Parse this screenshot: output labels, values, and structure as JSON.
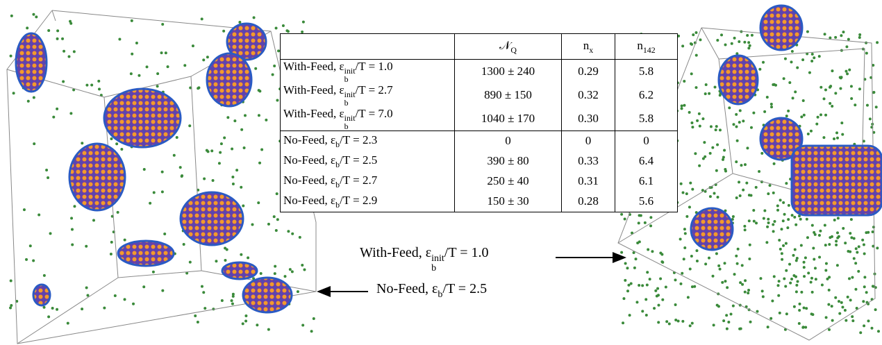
{
  "table": {
    "header": [
      {
        "main": "𝒩",
        "sub": "Q"
      },
      {
        "main": "n",
        "sub": "x"
      },
      {
        "main": "n",
        "sub": "142"
      }
    ],
    "rows": [
      {
        "label": {
          "main": "With-Feed, ε",
          "sub": "b",
          "sup": "init",
          "rest": "/T = 1.0"
        },
        "cells": [
          "1300 ± 240",
          "0.29",
          "5.8"
        ]
      },
      {
        "label": {
          "main": "With-Feed, ε",
          "sub": "b",
          "sup": "init",
          "rest": "/T = 2.7"
        },
        "cells": [
          "890 ± 150",
          "0.32",
          "6.2"
        ]
      },
      {
        "label": {
          "main": "With-Feed, ε",
          "sub": "b",
          "sup": "init",
          "rest": "/T = 7.0"
        },
        "cells": [
          "1040 ± 170",
          "0.30",
          "5.8"
        ]
      },
      {
        "label": {
          "main": "No-Feed, ε",
          "sub": "b",
          "rest": "/T = 2.3"
        },
        "cells": [
          "0",
          "0",
          "0"
        ]
      },
      {
        "label": {
          "main": "No-Feed, ε",
          "sub": "b",
          "rest": "/T = 2.5"
        },
        "cells": [
          "390 ± 80",
          "0.33",
          "6.4"
        ]
      },
      {
        "label": {
          "main": "No-Feed, ε",
          "sub": "b",
          "rest": "/T = 2.7"
        },
        "cells": [
          "250 ± 40",
          "0.31",
          "6.1"
        ]
      },
      {
        "label": {
          "main": "No-Feed, ε",
          "sub": "b",
          "rest": "/T = 2.9"
        },
        "cells": [
          "150 ± 30",
          "0.28",
          "5.6"
        ]
      }
    ]
  },
  "annotations": [
    {
      "main": "With-Feed, ε",
      "sub": "b",
      "sup": "init",
      "rest": "/T = 1.0"
    },
    {
      "main": "No-Feed, ε",
      "sub": "b",
      "rest": "/T = 2.5"
    }
  ]
}
